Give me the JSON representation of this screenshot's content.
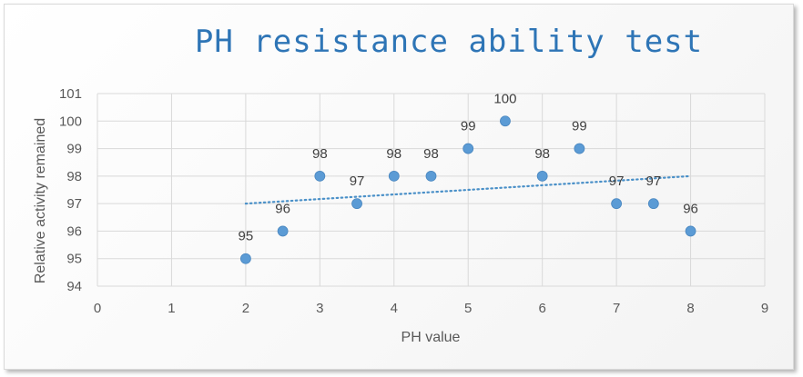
{
  "chart_data": {
    "type": "scatter",
    "title": "PH resistance ability test",
    "xlabel": "PH value",
    "ylabel": "Relative activity remained",
    "xlim": [
      0,
      9
    ],
    "ylim": [
      94,
      101
    ],
    "x_ticks": [
      "0",
      "1",
      "2",
      "3",
      "4",
      "5",
      "6",
      "7",
      "8",
      "9"
    ],
    "y_ticks": [
      "94",
      "95",
      "96",
      "97",
      "98",
      "99",
      "100",
      "101"
    ],
    "grid": true,
    "legend": "none",
    "series": [
      {
        "x": [
          2,
          2.5,
          3,
          3.5,
          4,
          4.5,
          5,
          5.5,
          6,
          6.5,
          7,
          7.5,
          8
        ],
        "y": [
          95,
          96,
          98,
          97,
          98,
          98,
          99,
          100,
          98,
          99,
          97,
          97,
          96
        ],
        "data_labels": [
          "95",
          "96",
          "98",
          "97",
          "98",
          "98",
          "99",
          "100",
          "98",
          "99",
          "97",
          "97",
          "96"
        ]
      }
    ],
    "trendline": {
      "type": "linear",
      "style": "dotted",
      "x": [
        2,
        8
      ],
      "y": [
        97.0,
        98.0
      ]
    },
    "colors": {
      "marker": "#5b9bd5",
      "trendline": "#4a90c8",
      "title": "#2e75b6",
      "grid": "#d9d9d9"
    }
  }
}
